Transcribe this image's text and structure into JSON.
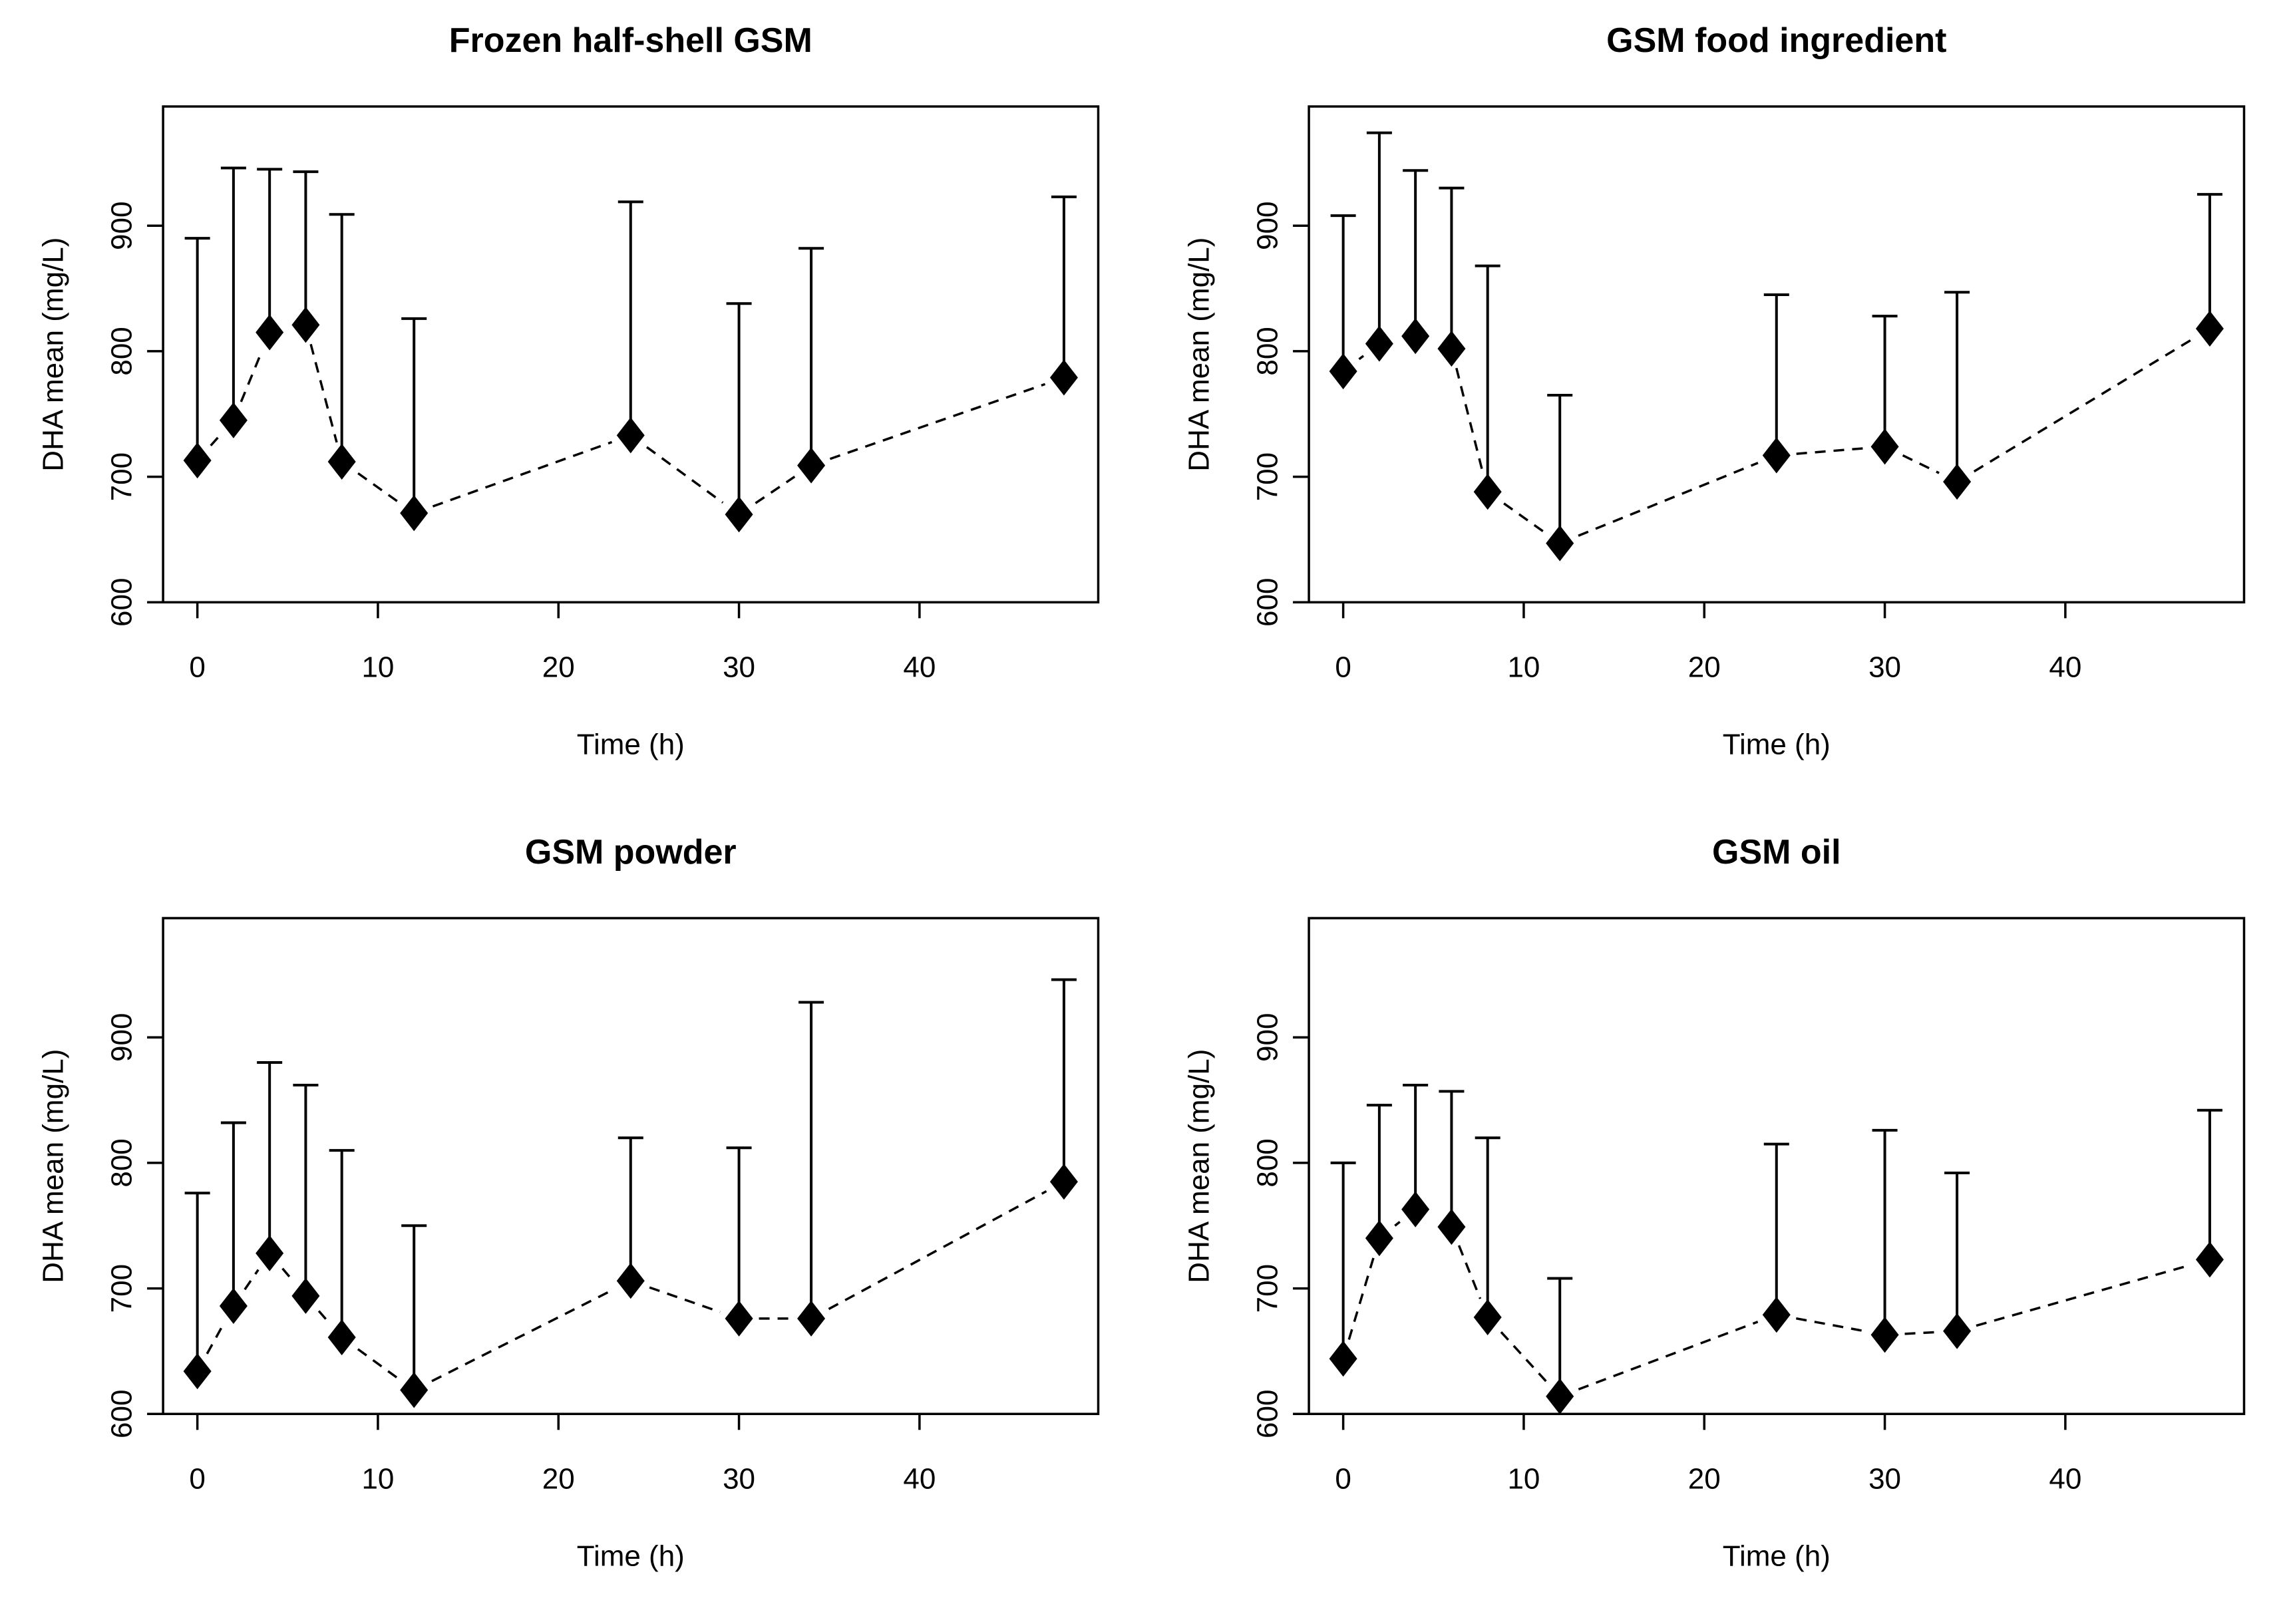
{
  "page": {
    "background_color": "#ffffff",
    "foreground_color": "#000000"
  },
  "figure": {
    "rows": 2,
    "cols": 2,
    "panel_order": [
      "Frozen half-shell GSM",
      "GSM food ingredient",
      "GSM powder",
      "GSM oil"
    ]
  },
  "chart_data": [
    {
      "type": "line",
      "title": "Frozen half-shell GSM",
      "xlabel": "Time (h)",
      "ylabel": "DHA mean (mg/L)",
      "x": [
        0,
        2,
        4,
        6,
        8,
        12,
        24,
        30,
        34,
        48
      ],
      "y": [
        713,
        745,
        815,
        821,
        712,
        671,
        733,
        670,
        709,
        779
      ],
      "y_upper": [
        890,
        946,
        945,
        943,
        909,
        826,
        919,
        838,
        882,
        923
      ],
      "xticks": [
        0,
        10,
        20,
        30,
        40
      ],
      "yticks": [
        600,
        700,
        800,
        900
      ],
      "xlim": [
        -1.9,
        49.9
      ],
      "ylim": [
        600,
        995
      ],
      "marker": "filled-diamond",
      "line_style": "dashed",
      "error_bars": "upper-only",
      "grid": false,
      "legend": "none"
    },
    {
      "type": "line",
      "title": "GSM food ingredient",
      "xlabel": "Time (h)",
      "ylabel": "DHA mean (mg/L)",
      "x": [
        0,
        2,
        4,
        6,
        8,
        12,
        24,
        30,
        34,
        48
      ],
      "y": [
        784,
        806,
        812,
        802,
        688,
        647,
        717,
        724,
        696,
        818
      ],
      "y_upper": [
        908,
        974,
        944,
        930,
        868,
        765,
        845,
        828,
        847,
        925
      ],
      "xticks": [
        0,
        10,
        20,
        30,
        40
      ],
      "yticks": [
        600,
        700,
        800,
        900
      ],
      "xlim": [
        -1.9,
        49.9
      ],
      "ylim": [
        600,
        995
      ],
      "marker": "filled-diamond",
      "line_style": "dashed",
      "error_bars": "upper-only",
      "grid": false,
      "legend": "none"
    },
    {
      "type": "line",
      "title": "GSM powder",
      "xlabel": "Time (h)",
      "ylabel": "DHA mean (mg/L)",
      "x": [
        0,
        2,
        4,
        6,
        8,
        12,
        24,
        30,
        34,
        48
      ],
      "y": [
        634,
        686,
        728,
        694,
        661,
        619,
        706,
        676,
        676,
        785
      ],
      "y_upper": [
        776,
        832,
        880,
        862,
        810,
        750,
        820,
        812,
        928,
        946
      ],
      "xticks": [
        0,
        10,
        20,
        30,
        40
      ],
      "yticks": [
        600,
        700,
        800,
        900
      ],
      "xlim": [
        -1.9,
        49.9
      ],
      "ylim": [
        600,
        995
      ],
      "marker": "filled-diamond",
      "line_style": "dashed",
      "error_bars": "upper-only",
      "grid": false,
      "legend": "none"
    },
    {
      "type": "line",
      "title": "GSM oil",
      "xlabel": "Time (h)",
      "ylabel": "DHA mean (mg/L)",
      "x": [
        0,
        2,
        4,
        6,
        8,
        12,
        24,
        30,
        34,
        48
      ],
      "y": [
        644,
        740,
        763,
        749,
        677,
        614,
        679,
        663,
        666,
        723
      ],
      "y_upper": [
        800,
        846,
        862,
        857,
        820,
        708,
        815,
        826,
        792,
        842
      ],
      "xticks": [
        0,
        10,
        20,
        30,
        40
      ],
      "yticks": [
        600,
        700,
        800,
        900
      ],
      "xlim": [
        -1.9,
        49.9
      ],
      "ylim": [
        600,
        995
      ],
      "marker": "filled-diamond",
      "line_style": "dashed",
      "error_bars": "upper-only",
      "grid": false,
      "legend": "none"
    }
  ]
}
